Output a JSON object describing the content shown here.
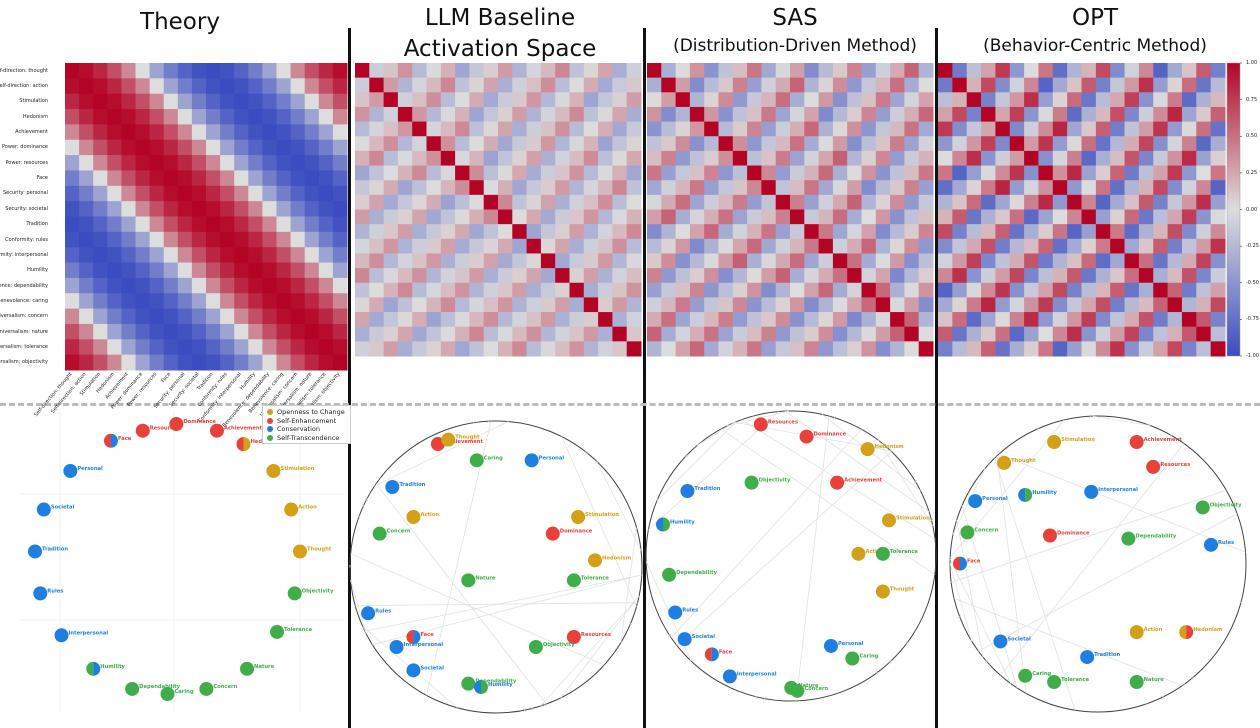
{
  "titles": {
    "theory": "Theory",
    "llm_line1": "LLM Baseline",
    "llm_line2": "Activation Space",
    "sas_main": "SAS",
    "sas_sub": "(Distribution-Driven Method)",
    "opt_main": "OPT",
    "opt_sub": "(Behavior-Centric Method)"
  },
  "colors": {
    "openness": "#d4a017",
    "enhancement": "#e8413a",
    "conservation": "#1f7fe0",
    "transcendence": "#3fae49",
    "heat_neg": "#3b4cc0",
    "heat_mid": "#dddddd",
    "heat_pos": "#b40426"
  },
  "legend": [
    {
      "label": "Openness to Change",
      "group": "openness"
    },
    {
      "label": "Self-Enhancement",
      "group": "enhancement"
    },
    {
      "label": "Conservation",
      "group": "conservation"
    },
    {
      "label": "Self-Transcendence",
      "group": "transcendence"
    }
  ],
  "chart_data": [
    {
      "type": "heatmap",
      "panel": "Theory",
      "labels": [
        "Self-direction: thought",
        "Self-direction: action",
        "Stimulation",
        "Hedonism",
        "Achievement",
        "Power: dominance",
        "Power: resources",
        "Face",
        "Security: personal",
        "Security: societal",
        "Tradition",
        "Conformity: rules",
        "Conformity: interpersonal",
        "Humility",
        "Benevolence: dependability",
        "Benevolence: caring",
        "Universalism: concern",
        "Universalism: nature",
        "Universalism: tolerance",
        "Universalism: objectivity"
      ],
      "value_range": [
        -1,
        1
      ],
      "pattern": "circumplex (correlation decreases with distance around the circle)"
    },
    {
      "type": "heatmap",
      "panel": "LLM Baseline Activation Space",
      "value_range": [
        -1,
        1
      ],
      "pattern": "diagonal 1.0, weak off-diagonal"
    },
    {
      "type": "heatmap",
      "panel": "SAS",
      "value_range": [
        -1,
        1
      ],
      "pattern": "diagonal 1.0, moderate off-diagonal"
    },
    {
      "type": "heatmap",
      "panel": "OPT",
      "value_range": [
        -1,
        1
      ],
      "pattern": "diagonal 1.0, strong off-diagonal",
      "colorbar": {
        "ticks": [
          "1.00",
          "0.75",
          "0.50",
          "0.25",
          "0.00",
          "-0.25",
          "-0.50",
          "-0.75",
          "-1.00"
        ]
      }
    },
    {
      "type": "scatter",
      "panel": "Theory circle",
      "points": [
        {
          "label": "Dominance",
          "groups": [
            "enhancement"
          ],
          "x": 0.55,
          "y": 0.96
        },
        {
          "label": "Achievement",
          "groups": [
            "enhancement"
          ],
          "x": 0.78,
          "y": 0.92
        },
        {
          "label": "Resources",
          "groups": [
            "enhancement"
          ],
          "x": 0.36,
          "y": 0.92
        },
        {
          "label": "Face",
          "groups": [
            "enhancement",
            "conservation"
          ],
          "x": 0.18,
          "y": 0.86
        },
        {
          "label": "Hedonism",
          "groups": [
            "enhancement",
            "openness"
          ],
          "x": 0.93,
          "y": 0.84
        },
        {
          "label": "Stimulation",
          "groups": [
            "openness"
          ],
          "x": 1.1,
          "y": 0.68
        },
        {
          "label": "Action",
          "groups": [
            "openness"
          ],
          "x": 1.2,
          "y": 0.45
        },
        {
          "label": "Thought",
          "groups": [
            "openness"
          ],
          "x": 1.25,
          "y": 0.2
        },
        {
          "label": "Objectivity",
          "groups": [
            "transcendence"
          ],
          "x": 1.22,
          "y": -0.05
        },
        {
          "label": "Tolerance",
          "groups": [
            "transcendence"
          ],
          "x": 1.12,
          "y": -0.28
        },
        {
          "label": "Nature",
          "groups": [
            "transcendence"
          ],
          "x": 0.95,
          "y": -0.5
        },
        {
          "label": "Concern",
          "groups": [
            "transcendence"
          ],
          "x": 0.72,
          "y": -0.62
        },
        {
          "label": "Caring",
          "groups": [
            "transcendence"
          ],
          "x": 0.5,
          "y": -0.65
        },
        {
          "label": "Dependability",
          "groups": [
            "transcendence"
          ],
          "x": 0.3,
          "y": -0.62
        },
        {
          "label": "Humility",
          "groups": [
            "transcendence",
            "conservation"
          ],
          "x": 0.08,
          "y": -0.5
        },
        {
          "label": "Interpersonal",
          "groups": [
            "conservation"
          ],
          "x": -0.1,
          "y": -0.3
        },
        {
          "label": "Rules",
          "groups": [
            "conservation"
          ],
          "x": -0.22,
          "y": -0.05
        },
        {
          "label": "Tradition",
          "groups": [
            "conservation"
          ],
          "x": -0.25,
          "y": 0.2
        },
        {
          "label": "Societal",
          "groups": [
            "conservation"
          ],
          "x": -0.2,
          "y": 0.45
        },
        {
          "label": "Personal",
          "groups": [
            "conservation"
          ],
          "x": -0.05,
          "y": 0.68
        }
      ]
    },
    {
      "type": "scatter",
      "panel": "LLM Baseline circle",
      "points": [
        {
          "label": "Achievement",
          "groups": [
            "enhancement"
          ],
          "x": 0.92,
          "y": 0.93
        },
        {
          "label": "Caring",
          "groups": [
            "transcendence"
          ],
          "x": 1.02,
          "y": 0.86
        },
        {
          "label": "Personal",
          "groups": [
            "conservation"
          ],
          "x": 1.15,
          "y": 0.86
        },
        {
          "label": "Tradition",
          "groups": [
            "conservation"
          ],
          "x": 0.82,
          "y": 0.78
        },
        {
          "label": "Action",
          "groups": [
            "openness"
          ],
          "x": 0.87,
          "y": 0.69
        },
        {
          "label": "Stimulation",
          "groups": [
            "openness"
          ],
          "x": 1.26,
          "y": 0.69
        },
        {
          "label": "Concern",
          "groups": [
            "transcendence"
          ],
          "x": 0.79,
          "y": 0.64
        },
        {
          "label": "Dominance",
          "groups": [
            "enhancement"
          ],
          "x": 1.2,
          "y": 0.64
        },
        {
          "label": "Hedonism",
          "groups": [
            "openness"
          ],
          "x": 1.3,
          "y": 0.56
        },
        {
          "label": "Nature",
          "groups": [
            "transcendence"
          ],
          "x": 1.0,
          "y": 0.5
        },
        {
          "label": "Tolerance",
          "groups": [
            "transcendence"
          ],
          "x": 1.25,
          "y": 0.5
        },
        {
          "label": "Rules",
          "groups": [
            "conservation"
          ],
          "x": 0.76,
          "y": 0.4
        },
        {
          "label": "Resources",
          "groups": [
            "enhancement"
          ],
          "x": 1.25,
          "y": 0.33
        },
        {
          "label": "Face",
          "groups": [
            "enhancement",
            "conservation"
          ],
          "x": 0.87,
          "y": 0.33
        },
        {
          "label": "Objectivity",
          "groups": [
            "transcendence"
          ],
          "x": 1.16,
          "y": 0.3
        },
        {
          "label": "Interpersonal",
          "groups": [
            "conservation"
          ],
          "x": 0.83,
          "y": 0.3
        },
        {
          "label": "Societal",
          "groups": [
            "conservation"
          ],
          "x": 0.87,
          "y": 0.23
        },
        {
          "label": "Dependability",
          "groups": [
            "transcendence"
          ],
          "x": 1.0,
          "y": 0.19
        },
        {
          "label": "Humility",
          "groups": [
            "conservation",
            "transcendence"
          ],
          "x": 1.03,
          "y": 0.18
        },
        {
          "label": "Thought",
          "groups": [
            "openness"
          ],
          "x": 0.95,
          "y": 0.93
        }
      ]
    },
    {
      "type": "scatter",
      "panel": "SAS circle",
      "points": [
        {
          "label": "Resources",
          "groups": [
            "enhancement"
          ],
          "x": 0.4,
          "y": 0.83
        },
        {
          "label": "Dominance",
          "groups": [
            "enhancement"
          ],
          "x": 0.55,
          "y": 0.8
        },
        {
          "label": "Hedonism",
          "groups": [
            "openness"
          ],
          "x": 0.75,
          "y": 0.77
        },
        {
          "label": "Achievement",
          "groups": [
            "enhancement"
          ],
          "x": 0.65,
          "y": 0.69
        },
        {
          "label": "Objectivity",
          "groups": [
            "transcendence"
          ],
          "x": 0.37,
          "y": 0.69
        },
        {
          "label": "Tradition",
          "groups": [
            "conservation"
          ],
          "x": 0.16,
          "y": 0.67
        },
        {
          "label": "Stimulation",
          "groups": [
            "openness"
          ],
          "x": 0.82,
          "y": 0.6
        },
        {
          "label": "Humility",
          "groups": [
            "conservation",
            "transcendence"
          ],
          "x": 0.08,
          "y": 0.59
        },
        {
          "label": "Action",
          "groups": [
            "openness"
          ],
          "x": 0.72,
          "y": 0.52
        },
        {
          "label": "Tolerance",
          "groups": [
            "transcendence"
          ],
          "x": 0.8,
          "y": 0.52
        },
        {
          "label": "Thought",
          "groups": [
            "openness"
          ],
          "x": 0.8,
          "y": 0.43
        },
        {
          "label": "Dependability",
          "groups": [
            "transcendence"
          ],
          "x": 0.1,
          "y": 0.47
        },
        {
          "label": "Rules",
          "groups": [
            "conservation"
          ],
          "x": 0.12,
          "y": 0.38
        },
        {
          "label": "Societal",
          "groups": [
            "conservation"
          ],
          "x": 0.14,
          "y": 0.31
        },
        {
          "label": "Face",
          "groups": [
            "enhancement",
            "conservation"
          ],
          "x": 0.24,
          "y": 0.28
        },
        {
          "label": "Personal",
          "groups": [
            "conservation"
          ],
          "x": 0.63,
          "y": 0.3
        },
        {
          "label": "Caring",
          "groups": [
            "transcendence"
          ],
          "x": 0.7,
          "y": 0.27
        },
        {
          "label": "Interpersonal",
          "groups": [
            "conservation"
          ],
          "x": 0.28,
          "y": 0.2
        },
        {
          "label": "Nature",
          "groups": [
            "transcendence"
          ],
          "x": 0.5,
          "y": 0.2
        },
        {
          "label": "Concern",
          "groups": [
            "transcendence"
          ],
          "x": 0.52,
          "y": 0.19
        }
      ]
    },
    {
      "type": "scatter",
      "panel": "OPT circle",
      "points": [
        {
          "label": "Stimulation",
          "groups": [
            "openness"
          ],
          "x": 0.42,
          "y": 0.89
        },
        {
          "label": "Achievement",
          "groups": [
            "enhancement"
          ],
          "x": 0.62,
          "y": 0.89
        },
        {
          "label": "Thought",
          "groups": [
            "openness"
          ],
          "x": 0.28,
          "y": 0.85
        },
        {
          "label": "Resources",
          "groups": [
            "enhancement"
          ],
          "x": 0.66,
          "y": 0.81
        },
        {
          "label": "Personal",
          "groups": [
            "conservation"
          ],
          "x": 0.2,
          "y": 0.72
        },
        {
          "label": "Humility",
          "groups": [
            "conservation",
            "transcendence"
          ],
          "x": 0.35,
          "y": 0.72
        },
        {
          "label": "Interpersonal",
          "groups": [
            "conservation"
          ],
          "x": 0.51,
          "y": 0.73
        },
        {
          "label": "Objectivity",
          "groups": [
            "transcendence"
          ],
          "x": 0.78,
          "y": 0.68
        },
        {
          "label": "Concern",
          "groups": [
            "transcendence"
          ],
          "x": 0.21,
          "y": 0.6
        },
        {
          "label": "Dominance",
          "groups": [
            "enhancement"
          ],
          "x": 0.41,
          "y": 0.59
        },
        {
          "label": "Dependability",
          "groups": [
            "transcendence"
          ],
          "x": 0.6,
          "y": 0.58
        },
        {
          "label": "Rules",
          "groups": [
            "conservation"
          ],
          "x": 0.8,
          "y": 0.56
        },
        {
          "label": "Face",
          "groups": [
            "enhancement",
            "conservation"
          ],
          "x": 0.18,
          "y": 0.5
        },
        {
          "label": "Action",
          "groups": [
            "openness"
          ],
          "x": 0.62,
          "y": 0.28
        },
        {
          "label": "Hedonism",
          "groups": [
            "openness",
            "enhancement"
          ],
          "x": 0.74,
          "y": 0.28
        },
        {
          "label": "Societal",
          "groups": [
            "conservation"
          ],
          "x": 0.29,
          "y": 0.25
        },
        {
          "label": "Tradition",
          "groups": [
            "conservation"
          ],
          "x": 0.5,
          "y": 0.2
        },
        {
          "label": "Caring",
          "groups": [
            "transcendence"
          ],
          "x": 0.35,
          "y": 0.14
        },
        {
          "label": "Tolerance",
          "groups": [
            "transcendence"
          ],
          "x": 0.42,
          "y": 0.12
        },
        {
          "label": "Nature",
          "groups": [
            "transcendence"
          ],
          "x": 0.62,
          "y": 0.12
        }
      ]
    }
  ]
}
